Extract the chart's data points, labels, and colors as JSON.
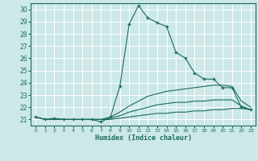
{
  "xlabel": "Humidex (Indice chaleur)",
  "bg_color": "#cce8e8",
  "line_color": "#1a6b5e",
  "grid_color": "#ffffff",
  "xlim": [
    -0.5,
    23.5
  ],
  "ylim": [
    20.5,
    30.5
  ],
  "yticks": [
    21,
    22,
    23,
    24,
    25,
    26,
    27,
    28,
    29,
    30
  ],
  "xticks": [
    0,
    1,
    2,
    3,
    4,
    5,
    6,
    7,
    8,
    9,
    10,
    11,
    12,
    13,
    14,
    15,
    16,
    17,
    18,
    19,
    20,
    21,
    22,
    23
  ],
  "lines": [
    {
      "x": [
        0,
        1,
        2,
        3,
        4,
        5,
        6,
        7,
        8,
        9,
        10,
        11,
        12,
        13,
        14,
        15,
        16,
        17,
        18,
        19,
        20,
        21,
        22,
        23
      ],
      "y": [
        21.2,
        21.0,
        21.1,
        21.0,
        21.0,
        21.0,
        21.0,
        20.8,
        21.2,
        23.7,
        28.8,
        30.3,
        29.3,
        28.9,
        28.6,
        26.5,
        26.0,
        24.8,
        24.3,
        24.3,
        23.6,
        23.6,
        22.0,
        21.8
      ],
      "marker": "+"
    },
    {
      "x": [
        0,
        1,
        2,
        3,
        4,
        5,
        6,
        7,
        8,
        9,
        10,
        11,
        12,
        13,
        14,
        15,
        16,
        17,
        18,
        19,
        20,
        21,
        22,
        23
      ],
      "y": [
        21.2,
        21.0,
        21.0,
        21.0,
        21.0,
        21.0,
        21.0,
        21.0,
        21.2,
        21.6,
        22.1,
        22.5,
        22.9,
        23.1,
        23.3,
        23.4,
        23.5,
        23.6,
        23.7,
        23.8,
        23.8,
        23.7,
        22.5,
        22.0
      ],
      "marker": null
    },
    {
      "x": [
        0,
        1,
        2,
        3,
        4,
        5,
        6,
        7,
        8,
        9,
        10,
        11,
        12,
        13,
        14,
        15,
        16,
        17,
        18,
        19,
        20,
        21,
        22,
        23
      ],
      "y": [
        21.2,
        21.0,
        21.0,
        21.0,
        21.0,
        21.0,
        21.0,
        21.0,
        21.1,
        21.3,
        21.6,
        21.8,
        22.0,
        22.2,
        22.3,
        22.4,
        22.4,
        22.5,
        22.5,
        22.6,
        22.6,
        22.6,
        22.1,
        21.8
      ],
      "marker": null
    },
    {
      "x": [
        0,
        1,
        2,
        3,
        4,
        5,
        6,
        7,
        8,
        9,
        10,
        11,
        12,
        13,
        14,
        15,
        16,
        17,
        18,
        19,
        20,
        21,
        22,
        23
      ],
      "y": [
        21.2,
        21.0,
        21.0,
        21.0,
        21.0,
        21.0,
        21.0,
        21.0,
        21.0,
        21.1,
        21.2,
        21.3,
        21.4,
        21.5,
        21.5,
        21.6,
        21.6,
        21.7,
        21.7,
        21.8,
        21.8,
        21.9,
        21.9,
        21.8
      ],
      "marker": null
    }
  ]
}
